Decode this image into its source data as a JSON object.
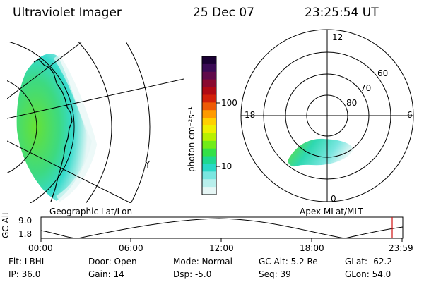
{
  "header": {
    "title": "Ultraviolet Imager",
    "date": "25 Dec 07",
    "time": "23:25:54 UT"
  },
  "colorbar": {
    "label": "photon cm⁻²s⁻¹",
    "ticks": [
      "100",
      "10"
    ],
    "colors": [
      "#1a0033",
      "#3a0a55",
      "#600a4a",
      "#8a0a30",
      "#b00a14",
      "#d2200a",
      "#ee5a05",
      "#ff9a00",
      "#ffd000",
      "#eef000",
      "#b8f000",
      "#70ec18",
      "#33e048",
      "#1ed890",
      "#2ad8c6",
      "#7ae6e0",
      "#b8efec",
      "#e6f6f5"
    ]
  },
  "geo_panel": {
    "caption": "Geographic Lat/Lon"
  },
  "polar_panel": {
    "caption": "Apex MLat/MLT",
    "mlt_labels": {
      "top": "12",
      "left": "18",
      "right": "6",
      "bottom": "0"
    },
    "lat_labels": [
      "60",
      "70",
      "80"
    ]
  },
  "altitude_plot": {
    "ylabel": "GC Alt",
    "y_ticks": [
      "9.0",
      "1.8"
    ],
    "x_ticks": [
      "00:00",
      "06:00",
      "12:00",
      "18:00",
      "23:59"
    ]
  },
  "info": {
    "filter": "Flt: LBHL",
    "door": "Door: Open",
    "mode": "Mode: Normal",
    "gc_alt": "GC Alt: 5.2 Re",
    "glat": "GLat: -62.2",
    "ip": "IP: 36.0",
    "gain": "Gain: 14",
    "dsp": "Dsp:    -5.0",
    "seq": "Seq: 39",
    "glon": "GLon:  54.0"
  },
  "colors": {
    "marker": "#d01010",
    "aurora_green": "#5ee02a",
    "aurora_cyan": "#2ad8c8"
  }
}
